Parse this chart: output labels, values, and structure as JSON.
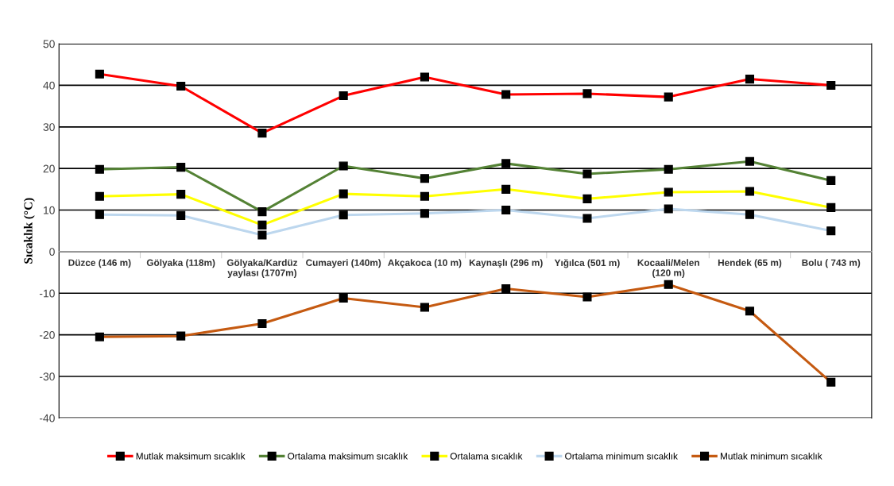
{
  "chart_data": {
    "type": "line",
    "ylabel": "Sıcaklık (°C)",
    "categories": [
      "Düzce (146 m)",
      "Gölyaka (118m)",
      "Gölyaka/Kardüz\nyaylası (1707m)",
      "Cumayeri (140m)",
      "Akçakoca (10 m)",
      "Kaynaşlı (296 m)",
      "Yığılca (501 m)",
      "Kocaali/Melen\n(120 m)",
      "Hendek (65 m)",
      "Bolu ( 743 m)"
    ],
    "series": [
      {
        "name": "Mutlak maksimum sıcaklık",
        "color": "#ff0000",
        "values": [
          42.7,
          39.8,
          28.5,
          37.5,
          42.0,
          37.8,
          38.0,
          37.2,
          41.5,
          40.0
        ]
      },
      {
        "name": "Ortalama maksimum sıcaklık",
        "color": "#548235",
        "values": [
          19.8,
          20.3,
          9.6,
          20.6,
          17.6,
          21.2,
          18.7,
          19.8,
          21.7,
          17.1
        ]
      },
      {
        "name": "Ortalama sıcaklık",
        "color": "#ffff00",
        "values": [
          13.3,
          13.8,
          6.4,
          13.9,
          13.3,
          15.0,
          12.7,
          14.3,
          14.5,
          10.6
        ]
      },
      {
        "name": "Ortalama minimum sıcaklık",
        "color": "#bdd7ee",
        "values": [
          8.9,
          8.7,
          4.0,
          8.8,
          9.2,
          10.0,
          8.0,
          10.3,
          8.9,
          5.0
        ]
      },
      {
        "name": "Mutlak minimum sıcaklık",
        "color": "#c55a11",
        "values": [
          -20.5,
          -20.3,
          -17.3,
          -11.2,
          -13.4,
          -8.9,
          -10.9,
          -7.9,
          -14.3,
          -31.4
        ]
      }
    ],
    "ylim": [
      -40,
      50
    ],
    "yticks": [
      -40,
      -30,
      -20,
      -10,
      0,
      10,
      20,
      30,
      40,
      50
    ],
    "grid": "y",
    "legend": "bottom",
    "marker": "square",
    "line_style": "solid"
  }
}
